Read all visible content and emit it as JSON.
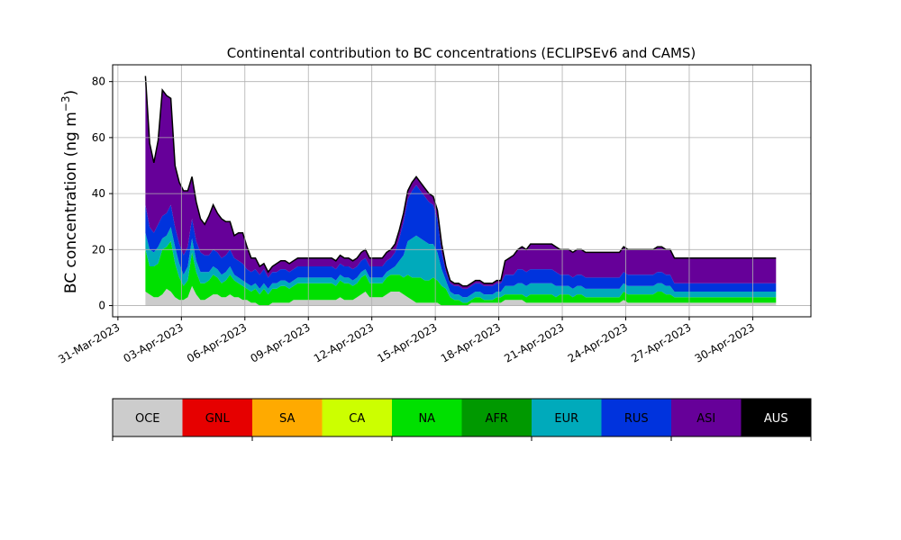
{
  "chart_data": {
    "type": "area",
    "stacked": true,
    "title": "Continental contribution to BC concentrations (ECLIPSEv6 and CAMS)",
    "ylabel": "BC concentration (ng m",
    "ylabel_sup": "−3",
    "ylabel_close": ")",
    "xlabel": "",
    "ylim": [
      -4,
      86
    ],
    "y_ticks": [
      0,
      20,
      40,
      60,
      80
    ],
    "xlim_days": [
      -0.25,
      32.75
    ],
    "x_ticks": [
      {
        "day": 0,
        "label": "31-Mar-2023"
      },
      {
        "day": 3,
        "label": "03-Apr-2023"
      },
      {
        "day": 6,
        "label": "06-Apr-2023"
      },
      {
        "day": 9,
        "label": "09-Apr-2023"
      },
      {
        "day": 12,
        "label": "12-Apr-2023"
      },
      {
        "day": 15,
        "label": "15-Apr-2023"
      },
      {
        "day": 18,
        "label": "18-Apr-2023"
      },
      {
        "day": 21,
        "label": "21-Apr-2023"
      },
      {
        "day": 24,
        "label": "24-Apr-2023"
      },
      {
        "day": 27,
        "label": "27-Apr-2023"
      },
      {
        "day": 30,
        "label": "30-Apr-2023"
      }
    ],
    "grid": true,
    "series": [
      {
        "name": "OCE",
        "color": "#cccccc"
      },
      {
        "name": "GNL",
        "color": "#e60000"
      },
      {
        "name": "SA",
        "color": "#ffaa00"
      },
      {
        "name": "CA",
        "color": "#ccff00"
      },
      {
        "name": "NA",
        "color": "#00e000"
      },
      {
        "name": "AFR",
        "color": "#009900"
      },
      {
        "name": "EUR",
        "color": "#00aabb"
      },
      {
        "name": "RUS",
        "color": "#0033dd"
      },
      {
        "name": "ASI",
        "color": "#660099"
      },
      {
        "name": "AUS",
        "color": "#000000"
      }
    ],
    "x": [
      1.3,
      1.5,
      1.7,
      1.9,
      2.1,
      2.3,
      2.5,
      2.7,
      2.9,
      3.1,
      3.3,
      3.5,
      3.7,
      3.9,
      4.1,
      4.3,
      4.5,
      4.7,
      4.9,
      5.1,
      5.3,
      5.5,
      5.7,
      5.9,
      6.1,
      6.3,
      6.5,
      6.7,
      6.9,
      7.1,
      7.3,
      7.5,
      7.7,
      7.9,
      8.1,
      8.3,
      8.5,
      8.7,
      8.9,
      9.1,
      9.3,
      9.5,
      9.7,
      9.9,
      10.1,
      10.3,
      10.5,
      10.7,
      10.9,
      11.1,
      11.3,
      11.5,
      11.7,
      11.9,
      12.1,
      12.3,
      12.5,
      12.7,
      12.9,
      13.1,
      13.3,
      13.5,
      13.7,
      13.9,
      14.1,
      14.3,
      14.5,
      14.7,
      14.9,
      15.1,
      15.3,
      15.5,
      15.7,
      15.9,
      16.1,
      16.3,
      16.5,
      16.7,
      16.9,
      17.1,
      17.3,
      17.5,
      17.7,
      17.9,
      18.1,
      18.3,
      18.5,
      18.7,
      18.9,
      19.1,
      19.3,
      19.5,
      19.7,
      19.9,
      20.1,
      20.3,
      20.5,
      20.7,
      20.9,
      21.1,
      21.3,
      21.5,
      21.7,
      21.9,
      22.1,
      22.3,
      22.5,
      22.7,
      22.9,
      23.1,
      23.3,
      23.5,
      23.7,
      23.9,
      24.1,
      24.3,
      24.5,
      24.7,
      24.9,
      25.1,
      25.3,
      25.5,
      25.7,
      25.9,
      26.1,
      26.3,
      26.5,
      26.7,
      26.9,
      27.1,
      27.3,
      27.5,
      27.7,
      27.9,
      28.1,
      28.3,
      28.5,
      28.7,
      28.9,
      29.1,
      29.3,
      29.5,
      29.7,
      29.9,
      30.1,
      30.3,
      30.5,
      30.7,
      30.9,
      31.1
    ],
    "values": {
      "OCE": [
        5,
        4,
        3,
        3,
        4,
        6,
        5,
        3,
        2,
        2,
        3,
        7,
        4,
        2,
        2,
        3,
        4,
        4,
        3,
        3,
        4,
        3,
        3,
        2,
        2,
        1,
        1,
        0,
        0,
        0,
        1,
        1,
        1,
        1,
        1,
        2,
        2,
        2,
        2,
        2,
        2,
        2,
        2,
        2,
        2,
        2,
        3,
        2,
        2,
        2,
        3,
        4,
        5,
        3,
        3,
        3,
        3,
        4,
        5,
        5,
        5,
        4,
        3,
        2,
        1,
        1,
        1,
        1,
        1,
        1,
        0,
        0,
        0,
        0,
        0,
        0,
        0,
        1,
        1,
        1,
        1,
        1,
        1,
        1,
        1,
        2,
        2,
        2,
        2,
        2,
        1,
        1,
        1,
        1,
        1,
        1,
        1,
        1,
        1,
        1,
        1,
        1,
        1,
        1,
        1,
        1,
        1,
        1,
        1,
        1,
        1,
        1,
        1,
        2,
        1,
        1,
        1,
        1,
        1,
        1,
        1,
        1,
        1,
        1,
        1,
        1,
        1,
        1,
        1,
        1,
        1,
        1,
        1,
        1,
        1,
        1,
        1,
        1,
        1,
        1,
        1,
        1,
        1,
        1,
        1,
        1,
        1,
        1,
        1,
        1
      ],
      "NA": [
        15,
        10,
        11,
        12,
        16,
        15,
        18,
        12,
        8,
        5,
        6,
        12,
        8,
        6,
        6,
        6,
        7,
        6,
        5,
        6,
        7,
        6,
        5,
        5,
        4,
        4,
        5,
        4,
        6,
        4,
        5,
        5,
        6,
        6,
        5,
        5,
        6,
        6,
        6,
        6,
        6,
        6,
        6,
        6,
        6,
        5,
        6,
        6,
        6,
        5,
        5,
        6,
        6,
        5,
        5,
        5,
        5,
        6,
        6,
        6,
        6,
        6,
        8,
        8,
        9,
        9,
        8,
        8,
        9,
        8,
        7,
        6,
        3,
        2,
        2,
        1,
        1,
        1,
        2,
        2,
        1,
        1,
        1,
        2,
        2,
        2,
        2,
        2,
        2,
        2,
        2,
        3,
        3,
        3,
        3,
        3,
        3,
        2,
        3,
        3,
        3,
        2,
        3,
        3,
        2,
        2,
        2,
        2,
        2,
        2,
        2,
        2,
        2,
        3,
        3,
        3,
        3,
        3,
        3,
        3,
        3,
        4,
        4,
        3,
        3,
        2,
        2,
        2,
        2,
        2,
        2,
        2,
        2,
        2,
        2,
        2,
        2,
        2,
        2,
        2,
        2,
        2,
        2,
        2,
        2,
        2,
        2,
        2,
        2,
        2
      ],
      "EUR": [
        6,
        6,
        5,
        6,
        4,
        4,
        5,
        6,
        5,
        4,
        5,
        5,
        4,
        4,
        4,
        3,
        3,
        3,
        3,
        3,
        3,
        2,
        2,
        2,
        2,
        2,
        2,
        2,
        2,
        2,
        2,
        2,
        2,
        2,
        2,
        2,
        2,
        2,
        2,
        2,
        2,
        2,
        2,
        2,
        2,
        2,
        2,
        2,
        2,
        2,
        2,
        2,
        2,
        2,
        2,
        2,
        2,
        2,
        2,
        3,
        5,
        8,
        12,
        14,
        15,
        14,
        14,
        13,
        12,
        10,
        6,
        3,
        2,
        2,
        2,
        2,
        2,
        2,
        2,
        2,
        2,
        2,
        2,
        2,
        2,
        3,
        3,
        3,
        4,
        4,
        4,
        4,
        4,
        4,
        4,
        4,
        4,
        4,
        3,
        3,
        3,
        3,
        3,
        3,
        3,
        3,
        3,
        3,
        3,
        3,
        3,
        3,
        3,
        3,
        3,
        3,
        3,
        3,
        3,
        3,
        3,
        3,
        3,
        3,
        3,
        2,
        2,
        2,
        2,
        2,
        2,
        2,
        2,
        2,
        2,
        2,
        2,
        2,
        2,
        2,
        2,
        2,
        2,
        2,
        2,
        2,
        2,
        2,
        2,
        2
      ],
      "RUS": [
        10,
        8,
        7,
        8,
        8,
        8,
        8,
        7,
        7,
        7,
        7,
        7,
        7,
        7,
        6,
        6,
        6,
        6,
        6,
        6,
        6,
        6,
        6,
        6,
        5,
        5,
        5,
        5,
        5,
        4,
        4,
        4,
        4,
        4,
        4,
        4,
        4,
        4,
        4,
        4,
        4,
        4,
        4,
        4,
        4,
        4,
        4,
        4,
        4,
        4,
        4,
        4,
        4,
        4,
        4,
        4,
        4,
        4,
        4,
        5,
        8,
        12,
        15,
        17,
        18,
        17,
        16,
        15,
        14,
        12,
        6,
        3,
        3,
        3,
        3,
        3,
        3,
        3,
        3,
        3,
        3,
        3,
        3,
        3,
        3,
        4,
        4,
        4,
        5,
        5,
        5,
        5,
        5,
        5,
        5,
        5,
        5,
        5,
        4,
        4,
        4,
        4,
        4,
        4,
        4,
        4,
        4,
        4,
        4,
        4,
        4,
        4,
        4,
        4,
        4,
        4,
        4,
        4,
        4,
        4,
        4,
        4,
        4,
        4,
        4,
        3,
        3,
        3,
        3,
        3,
        3,
        3,
        3,
        3,
        3,
        3,
        3,
        3,
        3,
        3,
        3,
        3,
        3,
        3,
        3,
        3,
        3,
        3,
        3,
        3
      ],
      "ASI": [
        46,
        30,
        25,
        30,
        45,
        42,
        38,
        22,
        22,
        23,
        20,
        15,
        14,
        12,
        11,
        14,
        16,
        14,
        14,
        12,
        10,
        8,
        10,
        11,
        8,
        5,
        4,
        3,
        2,
        2,
        2,
        3,
        3,
        3,
        3,
        3,
        3,
        3,
        3,
        3,
        3,
        3,
        3,
        3,
        3,
        3,
        3,
        3,
        3,
        3,
        3,
        3,
        3,
        3,
        3,
        3,
        3,
        3,
        3,
        3,
        3,
        3,
        3,
        3,
        3,
        3,
        3,
        3,
        3,
        3,
        3,
        2,
        1,
        1,
        1,
        1,
        1,
        1,
        1,
        1,
        1,
        1,
        1,
        1,
        1,
        5,
        6,
        7,
        7,
        8,
        8,
        9,
        9,
        9,
        9,
        9,
        9,
        9,
        9,
        9,
        9,
        9,
        9,
        9,
        9,
        9,
        9,
        9,
        9,
        9,
        9,
        9,
        9,
        9,
        9,
        9,
        9,
        9,
        9,
        9,
        9,
        9,
        9,
        9,
        9,
        9,
        9,
        9,
        9,
        9,
        9,
        9,
        9,
        9,
        9,
        9,
        9,
        9,
        9,
        9,
        9,
        9,
        9,
        9,
        9,
        9,
        9,
        9,
        9,
        9
      ],
      "AUS": [
        0,
        0,
        0,
        0,
        0,
        0,
        0,
        0,
        0,
        0,
        0,
        0,
        0,
        0,
        0,
        0,
        0,
        0,
        0,
        0,
        0,
        0,
        0,
        0,
        0,
        0,
        0,
        0,
        0,
        0,
        0,
        0,
        0,
        0,
        0,
        0,
        0,
        0,
        0,
        0,
        0,
        0,
        0,
        0,
        0,
        0,
        0,
        0,
        0,
        0,
        0,
        0,
        0,
        0,
        0,
        0,
        0,
        0,
        0,
        0,
        0,
        0,
        0,
        0,
        0,
        0,
        0,
        0,
        0,
        0,
        0,
        0,
        0,
        0,
        0,
        0,
        0,
        0,
        0,
        0,
        0,
        0,
        0,
        0,
        0,
        0,
        0,
        0,
        0,
        0,
        0,
        0,
        0,
        0,
        0,
        0,
        0,
        0,
        0,
        0,
        0,
        0,
        0,
        0,
        0,
        0,
        0,
        0,
        0,
        0,
        0,
        0,
        0,
        0,
        0,
        0,
        0,
        0,
        0,
        0,
        0,
        0,
        0,
        0,
        0,
        0,
        0,
        0,
        0,
        0,
        0,
        0,
        0,
        0,
        0,
        0,
        0,
        0,
        0,
        0,
        0,
        0,
        0,
        0,
        0,
        0,
        0,
        0,
        0,
        0
      ]
    }
  }
}
